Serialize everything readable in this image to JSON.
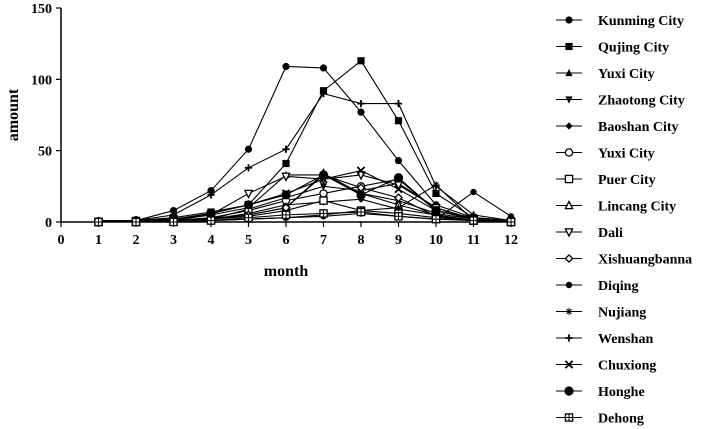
{
  "chart_data": {
    "type": "line",
    "xlabel": "month",
    "ylabel": "amount",
    "x": [
      1,
      2,
      3,
      4,
      5,
      6,
      7,
      8,
      9,
      10,
      11,
      12
    ],
    "xlim": [
      0,
      12
    ],
    "ylim": [
      0,
      150
    ],
    "x_ticks": [
      "0",
      "1",
      "2",
      "3",
      "4",
      "5",
      "6",
      "7",
      "8",
      "9",
      "10",
      "11",
      "12"
    ],
    "y_ticks": [
      "0",
      "50",
      "100",
      "150"
    ],
    "grid": false,
    "legend_position": "right",
    "series": [
      {
        "name": "Kunming City",
        "marker": "circle",
        "values": [
          1,
          1,
          8,
          22,
          51,
          109,
          108,
          77,
          43,
          12,
          3,
          1
        ]
      },
      {
        "name": "Qujing City",
        "marker": "square",
        "values": [
          0,
          1,
          3,
          7,
          12,
          41,
          92,
          113,
          71,
          20,
          3,
          1
        ]
      },
      {
        "name": "Yuxi City",
        "marker": "triangle-up",
        "values": [
          0,
          0,
          1,
          5,
          10,
          33,
          33,
          20,
          15,
          6,
          2,
          0
        ]
      },
      {
        "name": "Zhaotong City",
        "marker": "triangle-down",
        "values": [
          0,
          0,
          1,
          2,
          9,
          17,
          25,
          22,
          27,
          10,
          2,
          0
        ]
      },
      {
        "name": "Baoshan City",
        "marker": "diamond",
        "values": [
          0,
          0,
          1,
          2,
          6,
          12,
          14,
          16,
          9,
          5,
          1,
          0
        ]
      },
      {
        "name": "Yuxi City",
        "marker": "circle-open",
        "values": [
          0,
          0,
          1,
          3,
          8,
          15,
          20,
          25,
          30,
          8,
          2,
          0
        ]
      },
      {
        "name": "Puer City",
        "marker": "square-open",
        "values": [
          0,
          0,
          1,
          2,
          4,
          8,
          15,
          8,
          6,
          3,
          1,
          0
        ]
      },
      {
        "name": "Lincang City",
        "marker": "triangle-open",
        "values": [
          0,
          0,
          1,
          2,
          5,
          10,
          34,
          20,
          12,
          5,
          1,
          0
        ]
      },
      {
        "name": "Dali",
        "marker": "tri-down-open",
        "values": [
          0,
          1,
          2,
          5,
          20,
          32,
          30,
          33,
          26,
          10,
          2,
          0
        ]
      },
      {
        "name": "Xishuangbanna",
        "marker": "diamond-open",
        "values": [
          0,
          0,
          1,
          2,
          5,
          10,
          33,
          24,
          17,
          4,
          1,
          0
        ]
      },
      {
        "name": "Diqing",
        "marker": "dot",
        "values": [
          0,
          0,
          0,
          1,
          2,
          3,
          4,
          6,
          4,
          2,
          21,
          4
        ]
      },
      {
        "name": "Nujiang",
        "marker": "star",
        "values": [
          0,
          0,
          0,
          1,
          2,
          3,
          5,
          8,
          10,
          26,
          1,
          0
        ]
      },
      {
        "name": "Wenshan",
        "marker": "plus",
        "values": [
          1,
          1,
          5,
          19,
          38,
          51,
          90,
          83,
          83,
          25,
          5,
          1
        ]
      },
      {
        "name": "Chuxiong",
        "marker": "x",
        "values": [
          0,
          0,
          2,
          6,
          12,
          20,
          30,
          36,
          23,
          8,
          2,
          0
        ]
      },
      {
        "name": "Honghe",
        "marker": "circle-big",
        "values": [
          0,
          1,
          2,
          6,
          12,
          19,
          33,
          19,
          31,
          8,
          3,
          1
        ]
      },
      {
        "name": "Dehong",
        "marker": "square-cross",
        "values": [
          0,
          0,
          0,
          1,
          3,
          5,
          6,
          7,
          4,
          2,
          1,
          0
        ]
      }
    ]
  }
}
